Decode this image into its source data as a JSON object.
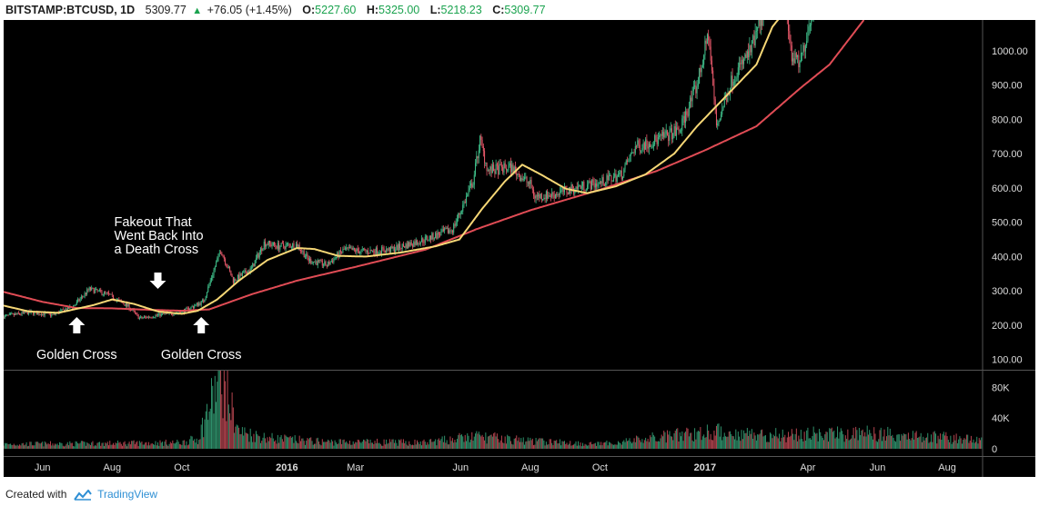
{
  "header": {
    "symbol": "BITSTAMP:BTCUSD, 1D",
    "price": "5309.77",
    "change": "+76.05 (+1.45%)",
    "open_label": "O:",
    "open": "5227.60",
    "high_label": "H:",
    "high": "5325.00",
    "low_label": "L:",
    "low": "5218.23",
    "close_label": "C:",
    "close": "5309.77"
  },
  "footer": {
    "created_with": "Created with",
    "brand": "TradingView"
  },
  "colors": {
    "background": "#000000",
    "up": "#3fbf8a",
    "down": "#e8586a",
    "ma_fast": "#f6d776",
    "ma_slow": "#e04c55",
    "axis_text": "#dddddd",
    "annotation": "#ffffff"
  },
  "chart_data": {
    "type": "candlestick",
    "title": "BITSTAMP:BTCUSD, 1D",
    "price_axis": {
      "ticks": [
        100,
        200,
        300,
        400,
        500,
        600,
        700,
        800,
        900,
        1000
      ],
      "tick_labels": [
        "100.00",
        "200.00",
        "300.00",
        "400.00",
        "500.00",
        "600.00",
        "700.00",
        "800.00",
        "900.00",
        "1000.00"
      ],
      "ylim": [
        70,
        1090
      ]
    },
    "volume_axis": {
      "ticks": [
        0,
        40000,
        80000
      ],
      "tick_labels": [
        "0",
        "40K",
        "80K"
      ],
      "ylim": [
        0,
        97000
      ]
    },
    "time_axis": {
      "range": [
        "2015-04-28",
        "2017-09-01"
      ],
      "ticks": [
        {
          "date": "2015-06-01",
          "label": "Jun",
          "bold": false
        },
        {
          "date": "2015-08-01",
          "label": "Aug",
          "bold": false
        },
        {
          "date": "2015-10-01",
          "label": "Oct",
          "bold": false
        },
        {
          "date": "2016-01-01",
          "label": "2016",
          "bold": true
        },
        {
          "date": "2016-03-01",
          "label": "Mar",
          "bold": false
        },
        {
          "date": "2016-06-01",
          "label": "Jun",
          "bold": false
        },
        {
          "date": "2016-08-01",
          "label": "Aug",
          "bold": false
        },
        {
          "date": "2016-10-01",
          "label": "Oct",
          "bold": false
        },
        {
          "date": "2017-01-01",
          "label": "2017",
          "bold": true
        },
        {
          "date": "2017-04-01",
          "label": "Apr",
          "bold": false
        },
        {
          "date": "2017-06-01",
          "label": "Jun",
          "bold": false
        },
        {
          "date": "2017-08-01",
          "label": "Aug",
          "bold": false
        }
      ]
    },
    "price_anchors": [
      [
        "2015-04-28",
        225
      ],
      [
        "2015-05-20",
        237
      ],
      [
        "2015-06-10",
        230
      ],
      [
        "2015-06-28",
        255
      ],
      [
        "2015-07-12",
        305
      ],
      [
        "2015-07-28",
        290
      ],
      [
        "2015-08-15",
        255
      ],
      [
        "2015-08-25",
        220
      ],
      [
        "2015-09-15",
        232
      ],
      [
        "2015-10-01",
        238
      ],
      [
        "2015-10-20",
        270
      ],
      [
        "2015-11-04",
        420
      ],
      [
        "2015-11-15",
        330
      ],
      [
        "2015-12-01",
        365
      ],
      [
        "2015-12-12",
        440
      ],
      [
        "2015-12-25",
        430
      ],
      [
        "2016-01-10",
        435
      ],
      [
        "2016-01-20",
        390
      ],
      [
        "2016-02-05",
        375
      ],
      [
        "2016-02-20",
        420
      ],
      [
        "2016-03-10",
        415
      ],
      [
        "2016-04-01",
        420
      ],
      [
        "2016-05-01",
        450
      ],
      [
        "2016-05-25",
        480
      ],
      [
        "2016-06-02",
        540
      ],
      [
        "2016-06-12",
        620
      ],
      [
        "2016-06-18",
        740
      ],
      [
        "2016-06-25",
        650
      ],
      [
        "2016-07-15",
        660
      ],
      [
        "2016-08-01",
        610
      ],
      [
        "2016-08-05",
        575
      ],
      [
        "2016-08-20",
        580
      ],
      [
        "2016-09-15",
        605
      ],
      [
        "2016-10-01",
        615
      ],
      [
        "2016-10-20",
        640
      ],
      [
        "2016-11-01",
        720
      ],
      [
        "2016-11-20",
        740
      ],
      [
        "2016-12-10",
        770
      ],
      [
        "2016-12-25",
        900
      ],
      [
        "2017-01-04",
        1050
      ],
      [
        "2017-01-11",
        780
      ],
      [
        "2017-01-25",
        920
      ],
      [
        "2017-02-10",
        1000
      ],
      [
        "2017-02-25",
        1150
      ],
      [
        "2017-03-10",
        1200
      ],
      [
        "2017-03-18",
        980
      ],
      [
        "2017-03-25",
        960
      ],
      [
        "2017-04-05",
        1120
      ],
      [
        "2017-09-01",
        4700
      ]
    ],
    "ma_fast_anchors": [
      [
        "2015-04-28",
        257
      ],
      [
        "2015-05-20",
        240
      ],
      [
        "2015-06-15",
        236
      ],
      [
        "2015-07-15",
        258
      ],
      [
        "2015-08-01",
        275
      ],
      [
        "2015-08-20",
        262
      ],
      [
        "2015-09-10",
        240
      ],
      [
        "2015-10-01",
        233
      ],
      [
        "2015-10-15",
        242
      ],
      [
        "2015-11-01",
        275
      ],
      [
        "2015-11-20",
        330
      ],
      [
        "2015-12-15",
        390
      ],
      [
        "2016-01-10",
        425
      ],
      [
        "2016-01-25",
        422
      ],
      [
        "2016-02-15",
        402
      ],
      [
        "2016-03-10",
        400
      ],
      [
        "2016-04-10",
        412
      ],
      [
        "2016-05-10",
        430
      ],
      [
        "2016-05-31",
        450
      ],
      [
        "2016-06-20",
        540
      ],
      [
        "2016-07-10",
        620
      ],
      [
        "2016-07-25",
        668
      ],
      [
        "2016-08-10",
        640
      ],
      [
        "2016-09-01",
        598
      ],
      [
        "2016-09-20",
        585
      ],
      [
        "2016-10-15",
        605
      ],
      [
        "2016-11-10",
        640
      ],
      [
        "2016-12-05",
        700
      ],
      [
        "2016-12-25",
        780
      ],
      [
        "2017-01-20",
        870
      ],
      [
        "2017-02-15",
        960
      ],
      [
        "2017-03-01",
        1070
      ],
      [
        "2017-04-01",
        1200
      ]
    ],
    "ma_slow_anchors": [
      [
        "2015-04-28",
        297
      ],
      [
        "2015-06-01",
        268
      ],
      [
        "2015-07-01",
        250
      ],
      [
        "2015-08-01",
        249
      ],
      [
        "2015-09-01",
        245
      ],
      [
        "2015-10-01",
        242
      ],
      [
        "2015-10-25",
        246
      ],
      [
        "2015-12-01",
        290
      ],
      [
        "2016-01-10",
        330
      ],
      [
        "2016-03-01",
        370
      ],
      [
        "2016-05-01",
        420
      ],
      [
        "2016-06-15",
        480
      ],
      [
        "2016-08-01",
        535
      ],
      [
        "2016-10-01",
        595
      ],
      [
        "2016-11-20",
        650
      ],
      [
        "2017-01-01",
        710
      ],
      [
        "2017-02-15",
        780
      ],
      [
        "2017-03-25",
        890
      ],
      [
        "2017-04-20",
        960
      ],
      [
        "2017-05-20",
        1090
      ]
    ],
    "volume_anchors": [
      [
        "2015-04-28",
        6000
      ],
      [
        "2015-08-01",
        7000
      ],
      [
        "2015-10-01",
        8000
      ],
      [
        "2015-10-15",
        13000
      ],
      [
        "2015-11-04",
        95000
      ],
      [
        "2015-11-20",
        22000
      ],
      [
        "2015-12-15",
        14000
      ],
      [
        "2016-02-01",
        9000
      ],
      [
        "2016-05-01",
        8000
      ],
      [
        "2016-06-15",
        16000
      ],
      [
        "2016-08-01",
        10000
      ],
      [
        "2016-10-01",
        6000
      ],
      [
        "2017-01-04",
        22000
      ],
      [
        "2017-03-01",
        18000
      ],
      [
        "2017-06-01",
        20000
      ],
      [
        "2017-08-01",
        14000
      ],
      [
        "2017-09-01",
        12000
      ]
    ],
    "annotations": [
      {
        "id": "golden-cross-1",
        "text": [
          "Golden Cross"
        ],
        "date": "2015-07-01",
        "arrow": "up"
      },
      {
        "id": "fakeout",
        "text": [
          "Fakeout That",
          "Went Back Into",
          "a Death Cross"
        ],
        "date": "2015-09-10",
        "arrow": "down"
      },
      {
        "id": "golden-cross-2",
        "text": [
          "Golden Cross"
        ],
        "date": "2015-10-18",
        "arrow": "up"
      }
    ]
  }
}
